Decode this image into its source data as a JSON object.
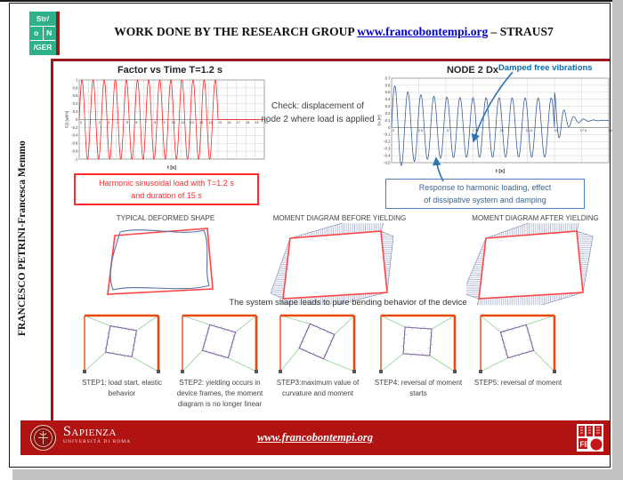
{
  "header": {
    "logo": {
      "line1": "Str/",
      "line2_left": "o",
      "line2_right": "N",
      "line3": "/GER"
    },
    "title_prefix": "WORK DONE BY THE RESEARCH GROUP ",
    "title_link": "www.francobontempi.org",
    "title_suffix": " – STRAUS7"
  },
  "sidebar": {
    "authors": "FRANCESCO PETRINI-Francesca Memmo"
  },
  "notes": {
    "check": "Check: displacement of node 2 where load is applied",
    "load_caption_line1": "Harmonic sinusoidal load with T=1.2 s",
    "load_caption_line2": "and duration of 15 s",
    "damped_label": "Damped free vibrations",
    "response_caption_line1": "Response to harmonic loading, effect",
    "response_caption_line2": "of dissipative system and damping",
    "bending_note": "The system shape leads to pure bending behavior of the device"
  },
  "diagrams": {
    "titles": [
      "TYPICAL DEFORMED SHAPE",
      "MOMENT DIAGRAM BEFORE YIELDING",
      "MOMENT DIAGRAM AFTER YIELDING"
    ]
  },
  "steps": [
    {
      "label": "STEP1: load start, elastic behavior"
    },
    {
      "label": "STEP2: yielding occurs in device frames, the moment diagram is no longer linear"
    },
    {
      "label": "STEP3:maximum value of curvature and moment"
    },
    {
      "label": "STEP4: reversal of moment starts"
    },
    {
      "label": "STEP5: reversal of moment"
    }
  ],
  "footer": {
    "brand": "Sapienza",
    "brand_sub": "Università di Roma",
    "link": "www.francobontempi.org"
  },
  "colors": {
    "accent_red": "#971b1e",
    "footer_red": "#b11212",
    "logo_teal": "#2eb08a",
    "load_red": "#ff1a1a",
    "response_blue": "#2e5395",
    "annotation_blue": "#0070c0",
    "frame_orange": "#e8490f",
    "brace_green": "#8fcf8f",
    "device_purple": "#7a5fa0"
  },
  "chart_data": [
    {
      "type": "line",
      "title": "Factor vs Time T=1.2 s",
      "xlabel": "t [s]",
      "ylabel": "F(t) [adim]",
      "xlim": [
        0,
        20
      ],
      "ylim": [
        -1,
        1
      ],
      "x_ticks": [
        0,
        1,
        2,
        3,
        4,
        5,
        6,
        7,
        8,
        9,
        10,
        11,
        12,
        13,
        14,
        15,
        16,
        17,
        18,
        19,
        20
      ],
      "y_ticks": [
        1,
        0.8,
        0.6,
        0.4,
        0.2,
        0,
        -0.2,
        -0.4,
        -0.6,
        -0.8,
        -1
      ],
      "grid": true,
      "legend": "none",
      "series": [
        {
          "name": "harmonic sinusoidal load factor",
          "color": "#ff1a1a",
          "kind": "harmonic",
          "amplitude": 1,
          "period_s": 1.2,
          "duration_s": 15
        }
      ]
    },
    {
      "type": "line",
      "title": "NODE 2 Dx",
      "xlabel": "t [s]",
      "ylabel": "Dx [m]",
      "xlim": [
        0,
        20
      ],
      "ylim": [
        -0.5,
        0.7
      ],
      "x_ticks": [
        0,
        2.5,
        5,
        7.5,
        10,
        12.5,
        15,
        17.5,
        20
      ],
      "y_ticks": [
        0.7,
        0.6,
        0.5,
        0.4,
        0.3,
        0.2,
        0.1,
        0,
        -0.1,
        -0.2,
        -0.3,
        -0.4,
        -0.5
      ],
      "grid": true,
      "legend": "none",
      "series": [
        {
          "name": "node 2 horizontal displacement",
          "color": "#2e5395",
          "kind": "forced_then_damped",
          "period_s": 1.2,
          "forced_amplitude": 0.42,
          "transient_amplitude": 0.2,
          "transient_decay_s": 1.8,
          "duration_s": 15,
          "free_mean": 0.1,
          "free_start_amplitude": 0.4,
          "free_decay_s": 0.9,
          "free_period_s": 0.9
        }
      ]
    }
  ]
}
